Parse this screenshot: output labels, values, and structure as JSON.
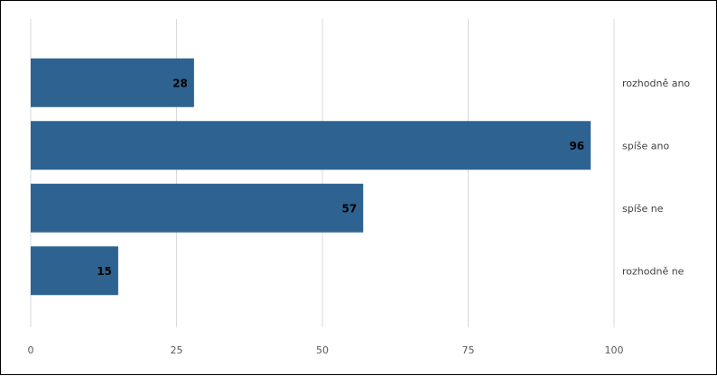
{
  "chart_data": {
    "type": "bar",
    "orientation": "horizontal",
    "categories": [
      "rozhodně ano",
      "spíše ano",
      "spíše ne",
      "rozhodně ne"
    ],
    "values": [
      28,
      96,
      57,
      15
    ],
    "data_labels": [
      "28",
      "96",
      "57",
      "15"
    ],
    "xlim": [
      0,
      100
    ],
    "x_ticks": [
      0,
      25,
      50,
      75,
      100
    ],
    "x_tick_labels": [
      "0",
      "25",
      "50",
      "75",
      "100"
    ],
    "grid": "vertical",
    "legend": "none",
    "category_label_position": "right",
    "title": "",
    "xlabel": "",
    "ylabel": "",
    "colors": {
      "bar": "#2e6391",
      "grid": "#d9d9d9",
      "tick_text": "#595959",
      "category_text": "#404040",
      "data_label": "#000000"
    }
  }
}
